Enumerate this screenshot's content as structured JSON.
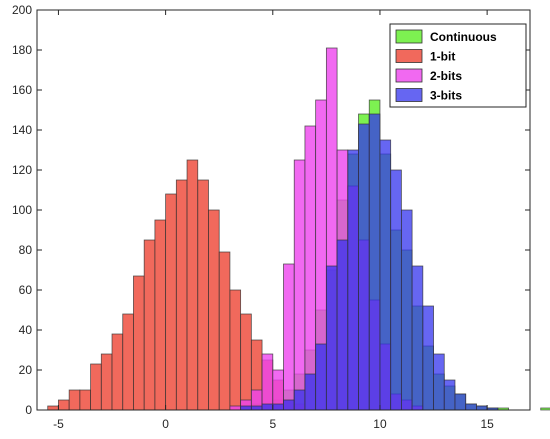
{
  "chart_data": {
    "type": "bar",
    "title": "",
    "xlabel": "",
    "ylabel": "",
    "xlim": [
      -6,
      17
    ],
    "ylim": [
      0,
      200
    ],
    "xticks": [
      -5,
      0,
      5,
      10,
      15
    ],
    "yticks": [
      0,
      20,
      40,
      60,
      80,
      100,
      120,
      140,
      160,
      180,
      200
    ],
    "grid": false,
    "legend_position": "top-right",
    "bin_width": 0.5,
    "series": [
      {
        "name": "Continuous",
        "color": "#66ee33",
        "opacity": 0.85,
        "bin_start": 3.5,
        "values": [
          2,
          3,
          2,
          5,
          10,
          18,
          30,
          50,
          70,
          105,
          128,
          148,
          155,
          128,
          90,
          80,
          52,
          32,
          18,
          12,
          8,
          3,
          2,
          1,
          1,
          0,
          0,
          0,
          1
        ]
      },
      {
        "name": "1-bit",
        "color": "#ee4433",
        "opacity": 0.8,
        "bin_start": -5.5,
        "values": [
          2,
          5,
          10,
          10,
          23,
          28,
          38,
          48,
          67,
          85,
          95,
          108,
          115,
          125,
          115,
          100,
          79,
          60,
          48,
          35,
          25,
          15,
          5,
          3
        ]
      },
      {
        "name": "2-bits",
        "color": "#ee44ee",
        "opacity": 0.8,
        "bin_start": 3.0,
        "values": [
          2,
          5,
          10,
          28,
          20,
          73,
          125,
          142,
          155,
          181,
          130,
          112,
          85,
          55,
          33,
          8,
          5,
          2
        ]
      },
      {
        "name": "3-bits",
        "color": "#3333ee",
        "opacity": 0.75,
        "bin_start": 3.5,
        "values": [
          2,
          2,
          3,
          3,
          5,
          10,
          18,
          33,
          72,
          85,
          130,
          143,
          148,
          135,
          120,
          100,
          72,
          52,
          28,
          15,
          8,
          3,
          2,
          1
        ]
      }
    ]
  }
}
